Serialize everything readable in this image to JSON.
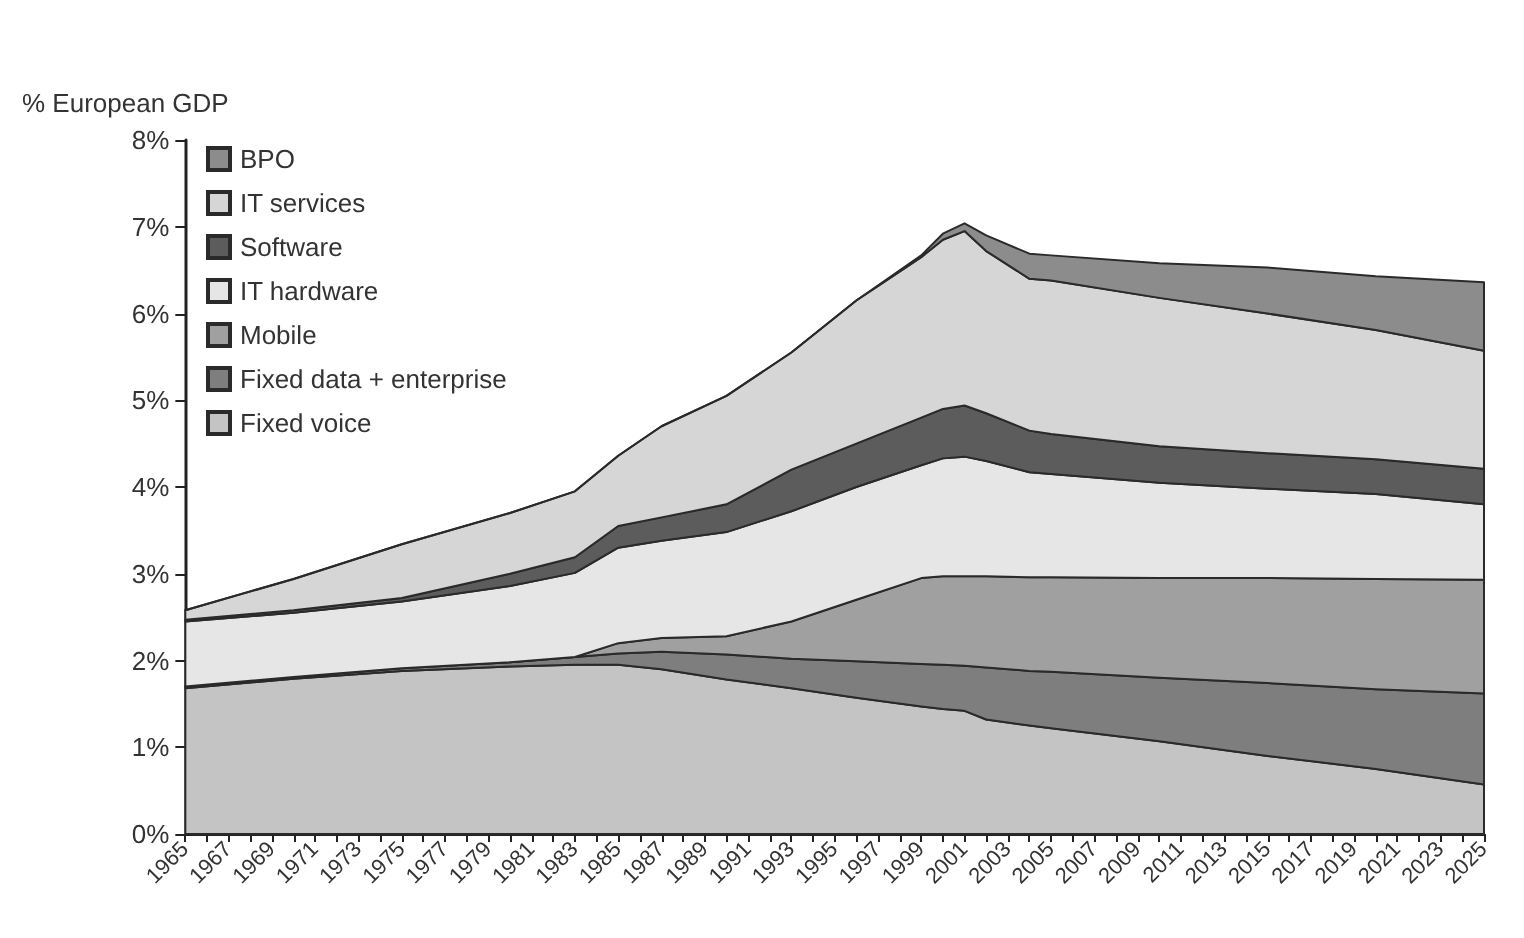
{
  "chart_data": {
    "type": "area",
    "ylabel": "% European GDP",
    "stacked": true,
    "x": [
      1965,
      1970,
      1975,
      1980,
      1983,
      1985,
      1987,
      1990,
      1993,
      1996,
      1999,
      2000,
      2001,
      2002,
      2004,
      2005,
      2010,
      2015,
      2020,
      2025
    ],
    "series": [
      {
        "name": "Fixed voice",
        "color": "#c4c4c4",
        "values": [
          1.68,
          1.79,
          1.88,
          1.93,
          1.95,
          1.95,
          1.9,
          1.78,
          1.68,
          1.57,
          1.47,
          1.44,
          1.42,
          1.32,
          1.25,
          1.22,
          1.07,
          0.9,
          0.75,
          0.57
        ]
      },
      {
        "name": "Fixed data + enterprise",
        "color": "#7e7e7e",
        "values": [
          0.02,
          0.02,
          0.03,
          0.05,
          0.09,
          0.13,
          0.2,
          0.29,
          0.34,
          0.42,
          0.49,
          0.51,
          0.52,
          0.6,
          0.63,
          0.65,
          0.73,
          0.84,
          0.92,
          1.05
        ]
      },
      {
        "name": "Mobile",
        "color": "#a0a0a0",
        "values": [
          0,
          0,
          0,
          0,
          0,
          0.12,
          0.16,
          0.21,
          0.43,
          0.71,
          0.99,
          1.02,
          1.03,
          1.05,
          1.08,
          1.09,
          1.15,
          1.21,
          1.27,
          1.31
        ]
      },
      {
        "name": "IT hardware",
        "color": "#e6e6e6",
        "values": [
          0.75,
          0.74,
          0.77,
          0.88,
          0.97,
          1.1,
          1.12,
          1.2,
          1.27,
          1.3,
          1.3,
          1.36,
          1.38,
          1.33,
          1.21,
          1.19,
          1.1,
          1.03,
          0.98,
          0.87
        ]
      },
      {
        "name": "Software",
        "color": "#5c5c5c",
        "values": [
          0.02,
          0.03,
          0.04,
          0.14,
          0.18,
          0.25,
          0.27,
          0.32,
          0.48,
          0.5,
          0.55,
          0.57,
          0.59,
          0.55,
          0.48,
          0.46,
          0.42,
          0.41,
          0.4,
          0.41
        ]
      },
      {
        "name": "IT services",
        "color": "#d6d6d6",
        "values": [
          0.11,
          0.36,
          0.62,
          0.7,
          0.76,
          0.81,
          1.05,
          1.25,
          1.35,
          1.65,
          1.85,
          1.95,
          2.01,
          1.87,
          1.75,
          1.77,
          1.71,
          1.61,
          1.49,
          1.36
        ]
      },
      {
        "name": "BPO",
        "color": "#8c8c8c",
        "values": [
          0,
          0,
          0,
          0,
          0,
          0,
          0,
          0,
          0,
          0,
          0.02,
          0.07,
          0.09,
          0.18,
          0.29,
          0.29,
          0.4,
          0.53,
          0.62,
          0.79
        ]
      }
    ],
    "xlim": [
      1965,
      2025
    ],
    "xticks": [
      1965,
      {
        "value": 1966,
        "label": null
      },
      1967,
      {
        "value": 1968,
        "label": null
      },
      1969,
      {
        "value": 1970,
        "label": null
      },
      1971,
      {
        "value": 1972,
        "label": null
      },
      1973,
      {
        "value": 1974,
        "label": null
      },
      1975,
      {
        "value": 1976,
        "label": null
      },
      1977,
      {
        "value": 1978,
        "label": null
      },
      1979,
      {
        "value": 1980,
        "label": null
      },
      1981,
      {
        "value": 1982,
        "label": null
      },
      1983,
      {
        "value": 1984,
        "label": null
      },
      1985,
      {
        "value": 1986,
        "label": null
      },
      1987,
      {
        "value": 1988,
        "label": null
      },
      1989,
      {
        "value": 1990,
        "label": null
      },
      1991,
      {
        "value": 1992,
        "label": null
      },
      1993,
      {
        "value": 1994,
        "label": null
      },
      1995,
      {
        "value": 1996,
        "label": null
      },
      1997,
      {
        "value": 1998,
        "label": null
      },
      1999,
      {
        "value": 2000,
        "label": null
      },
      2001,
      {
        "value": 2002,
        "label": null
      },
      2003,
      {
        "value": 2004,
        "label": null
      },
      2005,
      {
        "value": 2006,
        "label": null
      },
      2007,
      {
        "value": 2008,
        "label": null
      },
      2009,
      {
        "value": 2010,
        "label": null
      },
      2011,
      {
        "value": 2012,
        "label": null
      },
      2013,
      {
        "value": 2014,
        "label": null
      },
      2015,
      {
        "value": 2016,
        "label": null
      },
      2017,
      {
        "value": 2018,
        "label": null
      },
      2019,
      {
        "value": 2020,
        "label": null
      },
      2021,
      {
        "value": 2022,
        "label": null
      },
      2023,
      {
        "value": 2024,
        "label": null
      },
      2025
    ],
    "ylim": [
      0,
      8
    ],
    "yticks": [
      {
        "value": 0,
        "label": "0%"
      },
      {
        "value": 1,
        "label": "1%"
      },
      {
        "value": 2,
        "label": "2%"
      },
      {
        "value": 3,
        "label": "3%"
      },
      {
        "value": 4,
        "label": "4%"
      },
      {
        "value": 5,
        "label": "5%"
      },
      {
        "value": 6,
        "label": "6%"
      },
      {
        "value": 7,
        "label": "7%"
      },
      {
        "value": 8,
        "label": "8%"
      }
    ],
    "grid": false,
    "legend": "top left",
    "line_style": "solid"
  }
}
